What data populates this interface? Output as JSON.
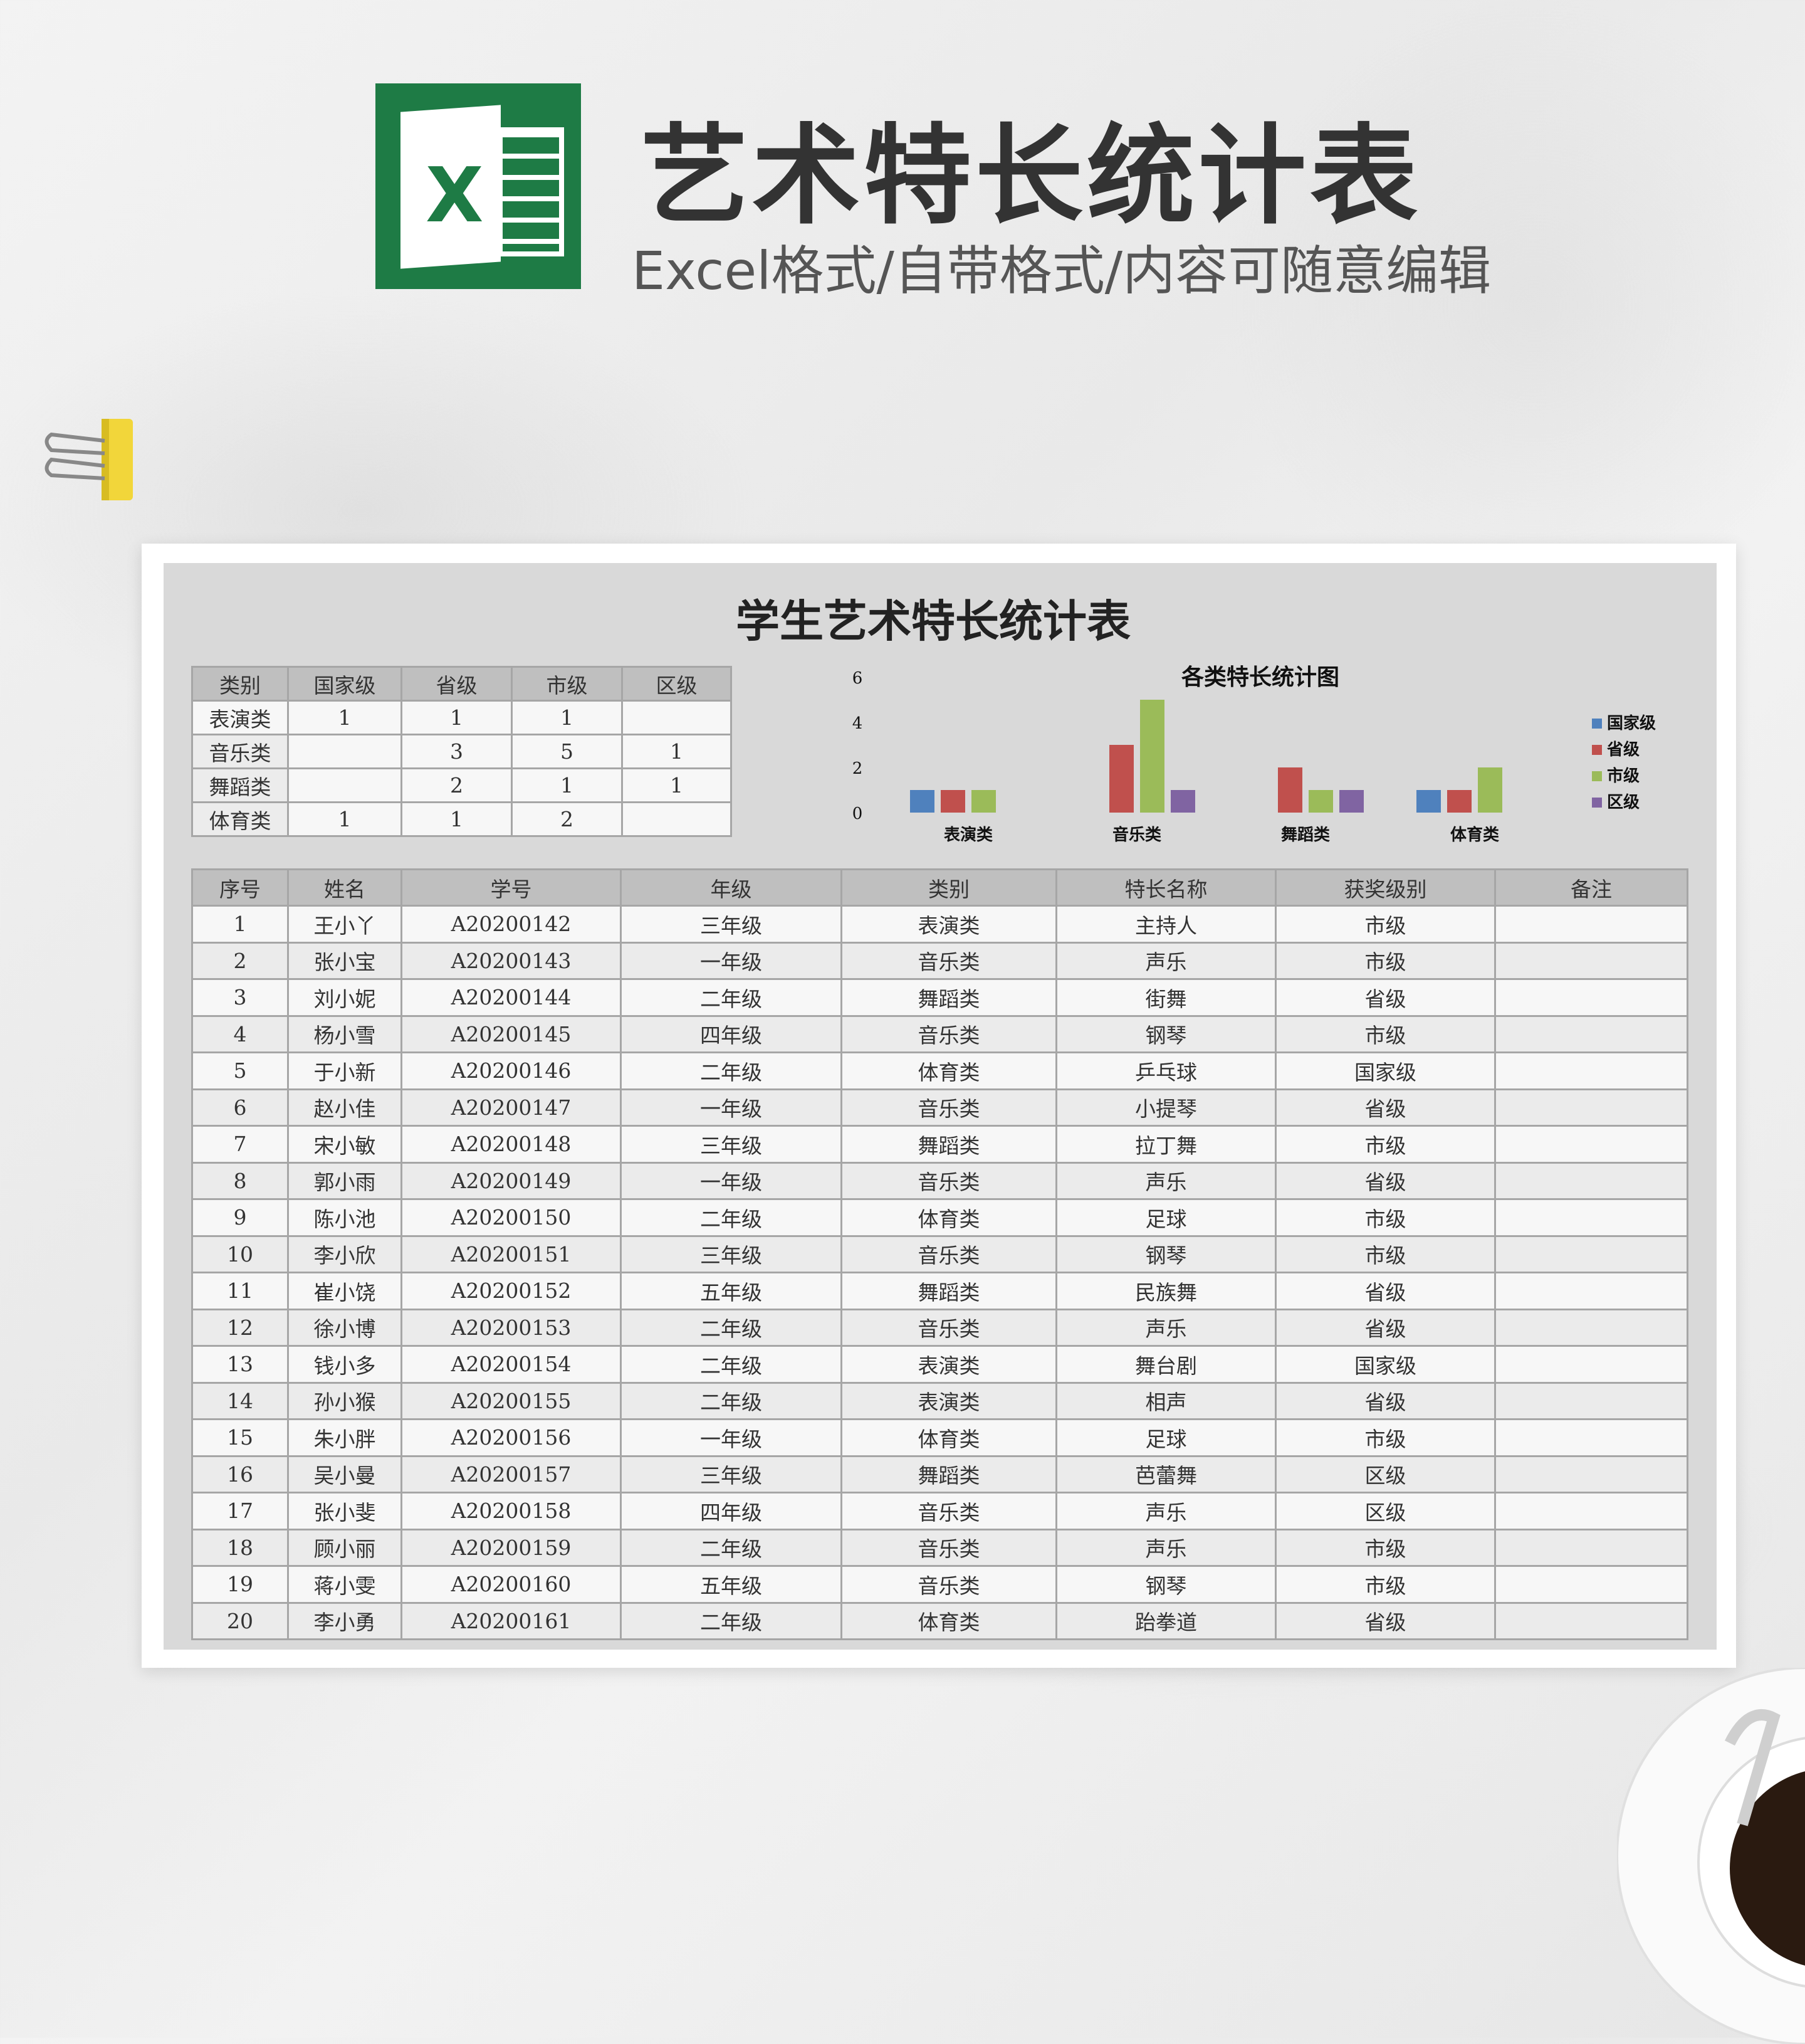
{
  "header": {
    "title": "艺术特长统计表",
    "subtitle": "Excel格式/自带格式/内容可随意编辑",
    "logo_letter": "X"
  },
  "sheet": {
    "title": "学生艺术特长统计表",
    "summary": {
      "columns": [
        "类别",
        "国家级",
        "省级",
        "市级",
        "区级"
      ],
      "rows": [
        [
          "表演类",
          "1",
          "1",
          "1",
          ""
        ],
        [
          "音乐类",
          "",
          "3",
          "5",
          "1"
        ],
        [
          "舞蹈类",
          "",
          "2",
          "1",
          "1"
        ],
        [
          "体育类",
          "1",
          "1",
          "2",
          ""
        ]
      ]
    },
    "records": {
      "columns": [
        "序号",
        "姓名",
        "学号",
        "年级",
        "类别",
        "特长名称",
        "获奖级别",
        "备注"
      ],
      "rows": [
        [
          "1",
          "王小丫",
          "A20200142",
          "三年级",
          "表演类",
          "主持人",
          "市级",
          ""
        ],
        [
          "2",
          "张小宝",
          "A20200143",
          "一年级",
          "音乐类",
          "声乐",
          "市级",
          ""
        ],
        [
          "3",
          "刘小妮",
          "A20200144",
          "二年级",
          "舞蹈类",
          "街舞",
          "省级",
          ""
        ],
        [
          "4",
          "杨小雪",
          "A20200145",
          "四年级",
          "音乐类",
          "钢琴",
          "市级",
          ""
        ],
        [
          "5",
          "于小新",
          "A20200146",
          "二年级",
          "体育类",
          "乒乓球",
          "国家级",
          ""
        ],
        [
          "6",
          "赵小佳",
          "A20200147",
          "一年级",
          "音乐类",
          "小提琴",
          "省级",
          ""
        ],
        [
          "7",
          "宋小敏",
          "A20200148",
          "三年级",
          "舞蹈类",
          "拉丁舞",
          "市级",
          ""
        ],
        [
          "8",
          "郭小雨",
          "A20200149",
          "一年级",
          "音乐类",
          "声乐",
          "省级",
          ""
        ],
        [
          "9",
          "陈小池",
          "A20200150",
          "二年级",
          "体育类",
          "足球",
          "市级",
          ""
        ],
        [
          "10",
          "李小欣",
          "A20200151",
          "三年级",
          "音乐类",
          "钢琴",
          "市级",
          ""
        ],
        [
          "11",
          "崔小饶",
          "A20200152",
          "五年级",
          "舞蹈类",
          "民族舞",
          "省级",
          ""
        ],
        [
          "12",
          "徐小博",
          "A20200153",
          "二年级",
          "音乐类",
          "声乐",
          "省级",
          ""
        ],
        [
          "13",
          "钱小多",
          "A20200154",
          "二年级",
          "表演类",
          "舞台剧",
          "国家级",
          ""
        ],
        [
          "14",
          "孙小猴",
          "A20200155",
          "二年级",
          "表演类",
          "相声",
          "省级",
          ""
        ],
        [
          "15",
          "朱小胖",
          "A20200156",
          "一年级",
          "体育类",
          "足球",
          "市级",
          ""
        ],
        [
          "16",
          "吴小曼",
          "A20200157",
          "三年级",
          "舞蹈类",
          "芭蕾舞",
          "区级",
          ""
        ],
        [
          "17",
          "张小斐",
          "A20200158",
          "四年级",
          "音乐类",
          "声乐",
          "区级",
          ""
        ],
        [
          "18",
          "顾小丽",
          "A20200159",
          "二年级",
          "音乐类",
          "声乐",
          "市级",
          ""
        ],
        [
          "19",
          "蒋小雯",
          "A20200160",
          "五年级",
          "音乐类",
          "钢琴",
          "市级",
          ""
        ],
        [
          "20",
          "李小勇",
          "A20200161",
          "二年级",
          "体育类",
          "跆拳道",
          "省级",
          ""
        ]
      ]
    }
  },
  "chart_data": {
    "type": "bar",
    "title": "各类特长统计图",
    "categories": [
      "表演类",
      "音乐类",
      "舞蹈类",
      "体育类"
    ],
    "series": [
      {
        "name": "国家级",
        "color": "#4f81bd",
        "values": [
          1,
          0,
          0,
          1
        ]
      },
      {
        "name": "省级",
        "color": "#c0504d",
        "values": [
          1,
          3,
          2,
          1
        ]
      },
      {
        "name": "市级",
        "color": "#9bbb59",
        "values": [
          1,
          5,
          1,
          2
        ]
      },
      {
        "name": "区级",
        "color": "#8064a2",
        "values": [
          0,
          1,
          1,
          0
        ]
      }
    ],
    "ylim": [
      0,
      6
    ],
    "yticks": [
      "0",
      "2",
      "4",
      "6"
    ],
    "grid": false,
    "legend": "right"
  }
}
